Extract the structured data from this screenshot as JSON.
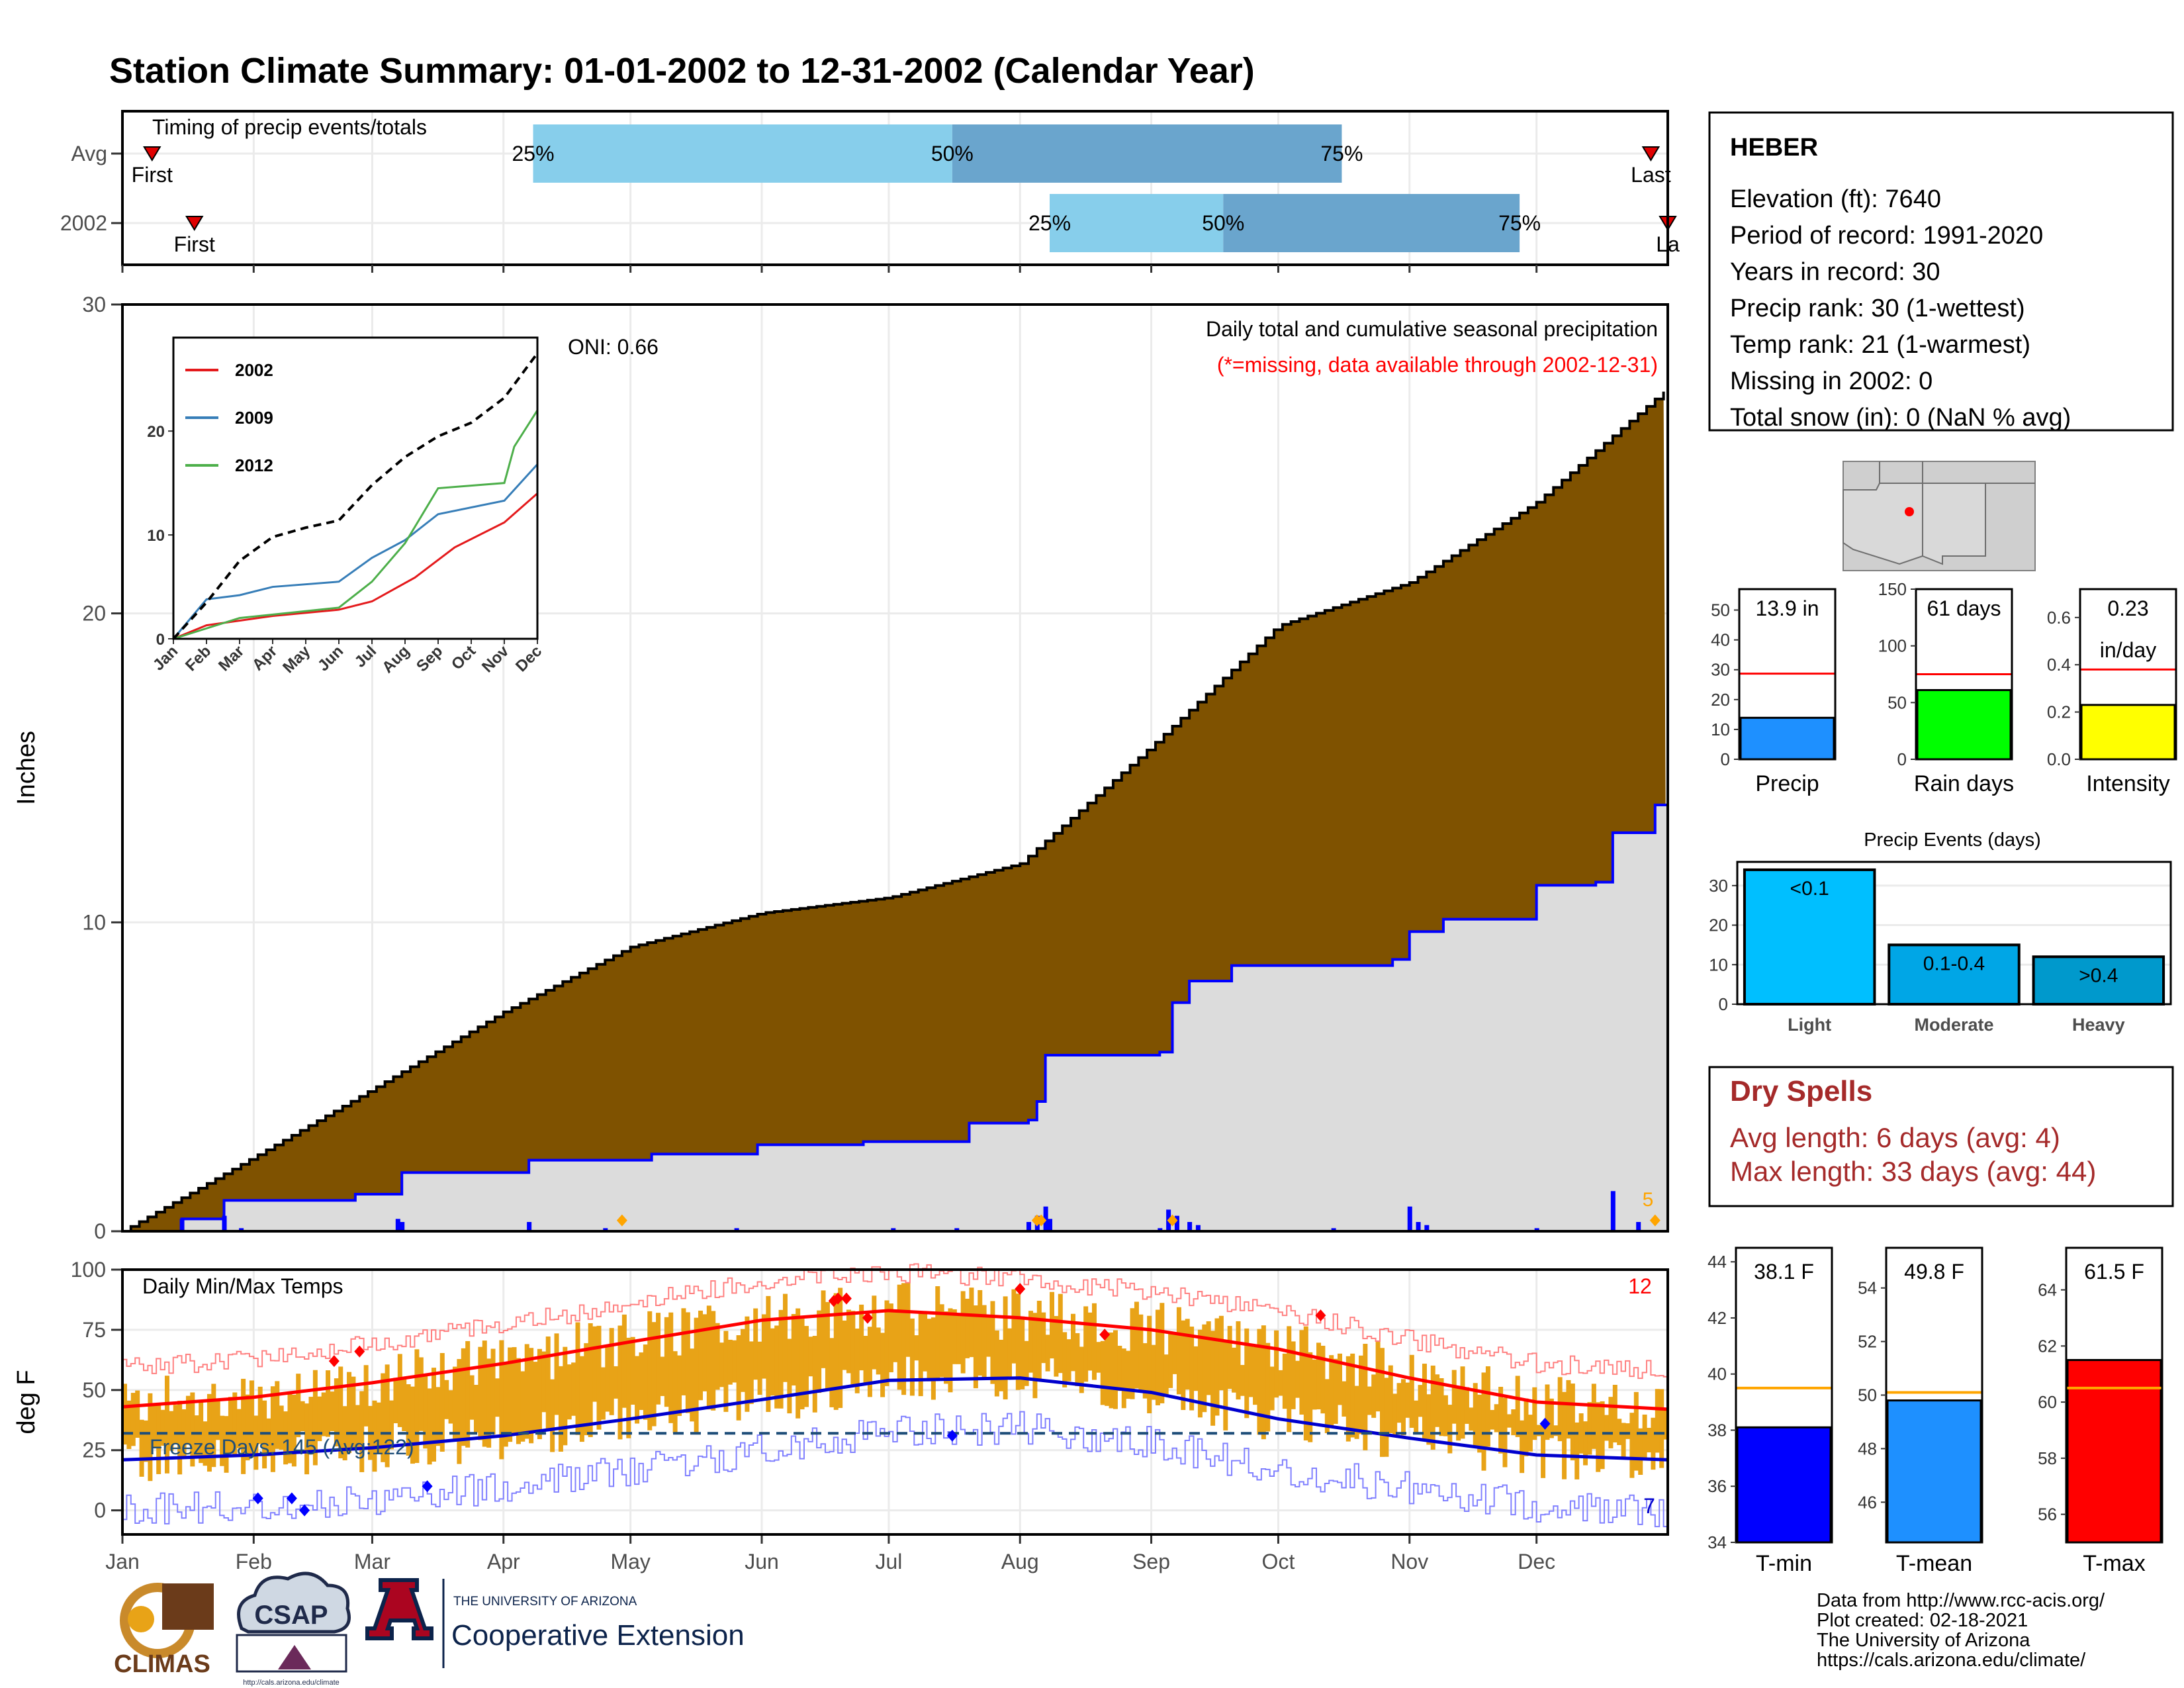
{
  "title": "Station Climate Summary: 01-01-2002 to 12-31-2002 (Calendar Year)",
  "colors": {
    "title": "#000080",
    "precip_fill": "#7f5200",
    "precip_line": "#0000ff",
    "normal_fill": "#dcdcdc",
    "timing_light": "#87ceeb",
    "timing_dark": "#6aa5cd",
    "temp_bar": "#e8a317",
    "dry_spell": "#a52a2a",
    "missing": "#ff0000"
  },
  "months": [
    "Jan",
    "Feb",
    "Mar",
    "Apr",
    "May",
    "Jun",
    "Jul",
    "Aug",
    "Sep",
    "Oct",
    "Nov",
    "Dec"
  ],
  "timing": {
    "label": "Timing of precip events/totals",
    "rows": [
      {
        "name": "Avg",
        "first_day": 7,
        "p25": 97,
        "p50": 196,
        "p75": 288,
        "last_day": 361,
        "first_label": "First",
        "last_label": "Last",
        "p25_label": "25%",
        "p50_label": "50%",
        "p75_label": "75%"
      },
      {
        "name": "2002",
        "first_day": 17,
        "p25": 219,
        "p50": 260,
        "p75": 330,
        "last_day": 365,
        "first_label": "First",
        "last_label": "La",
        "p25_label": "25%",
        "p50_label": "50%",
        "p75_label": "75%"
      }
    ]
  },
  "precip": {
    "ylabel": "Inches",
    "yticks": [
      0,
      10,
      20,
      30
    ],
    "ymax": 30,
    "title": "Daily total and cumulative seasonal precipitation",
    "subtitle": "(*=missing, data available through 2002-12-31)",
    "oni": "ONI: 0.66",
    "corner_count": "5",
    "normal_cumulative": [
      {
        "day": 0,
        "value": 0.0
      },
      {
        "day": 31,
        "value": 2.4
      },
      {
        "day": 59,
        "value": 4.6
      },
      {
        "day": 90,
        "value": 7.1
      },
      {
        "day": 120,
        "value": 9.2
      },
      {
        "day": 151,
        "value": 10.3
      },
      {
        "day": 181,
        "value": 10.8
      },
      {
        "day": 212,
        "value": 11.9
      },
      {
        "day": 243,
        "value": 15.7
      },
      {
        "day": 273,
        "value": 19.6
      },
      {
        "day": 304,
        "value": 21.0
      },
      {
        "day": 334,
        "value": 23.6
      },
      {
        "day": 365,
        "value": 27.3
      }
    ],
    "cumulative_2002": [
      {
        "day": 0,
        "value": 0.0
      },
      {
        "day": 14,
        "value": 0.4
      },
      {
        "day": 24,
        "value": 1.0
      },
      {
        "day": 55,
        "value": 1.2
      },
      {
        "day": 66,
        "value": 1.9
      },
      {
        "day": 96,
        "value": 2.3
      },
      {
        "day": 110,
        "value": 2.3
      },
      {
        "day": 125,
        "value": 2.5
      },
      {
        "day": 150,
        "value": 2.8
      },
      {
        "day": 175,
        "value": 2.9
      },
      {
        "day": 200,
        "value": 3.5
      },
      {
        "day": 214,
        "value": 3.6
      },
      {
        "day": 216,
        "value": 4.2
      },
      {
        "day": 218,
        "value": 5.7
      },
      {
        "day": 245,
        "value": 5.8
      },
      {
        "day": 248,
        "value": 7.4
      },
      {
        "day": 252,
        "value": 8.1
      },
      {
        "day": 262,
        "value": 8.6
      },
      {
        "day": 300,
        "value": 8.8
      },
      {
        "day": 304,
        "value": 9.7
      },
      {
        "day": 312,
        "value": 10.1
      },
      {
        "day": 334,
        "value": 11.2
      },
      {
        "day": 348,
        "value": 11.3
      },
      {
        "day": 352,
        "value": 12.9
      },
      {
        "day": 362,
        "value": 13.8
      },
      {
        "day": 365,
        "value": 13.9
      }
    ],
    "daily": [
      {
        "day": 14,
        "value": 0.4
      },
      {
        "day": 24,
        "value": 0.5
      },
      {
        "day": 28,
        "value": 0.1
      },
      {
        "day": 65,
        "value": 0.4
      },
      {
        "day": 66,
        "value": 0.3
      },
      {
        "day": 96,
        "value": 0.3
      },
      {
        "day": 114,
        "value": 0.1
      },
      {
        "day": 145,
        "value": 0.1
      },
      {
        "day": 182,
        "value": 0.1
      },
      {
        "day": 197,
        "value": 0.1
      },
      {
        "day": 214,
        "value": 0.3
      },
      {
        "day": 216,
        "value": 0.5
      },
      {
        "day": 218,
        "value": 0.8
      },
      {
        "day": 219,
        "value": 0.4
      },
      {
        "day": 245,
        "value": 0.1
      },
      {
        "day": 247,
        "value": 0.7
      },
      {
        "day": 249,
        "value": 0.5
      },
      {
        "day": 252,
        "value": 0.3
      },
      {
        "day": 254,
        "value": 0.2
      },
      {
        "day": 286,
        "value": 0.1
      },
      {
        "day": 304,
        "value": 0.8
      },
      {
        "day": 306,
        "value": 0.3
      },
      {
        "day": 308,
        "value": 0.2
      },
      {
        "day": 334,
        "value": 0.1
      },
      {
        "day": 352,
        "value": 1.3
      },
      {
        "day": 358,
        "value": 0.3
      }
    ]
  },
  "inset": {
    "series": [
      {
        "name": "2002",
        "color": "#e41a1c",
        "points": [
          {
            "m": 0,
            "v": 0
          },
          {
            "m": 1,
            "v": 1.3
          },
          {
            "m": 3,
            "v": 2.2
          },
          {
            "m": 5,
            "v": 2.8
          },
          {
            "m": 6,
            "v": 3.6
          },
          {
            "m": 7.3,
            "v": 5.9
          },
          {
            "m": 8.5,
            "v": 8.8
          },
          {
            "m": 10,
            "v": 11.2
          },
          {
            "m": 11,
            "v": 14
          }
        ]
      },
      {
        "name": "2009",
        "color": "#377eb8",
        "points": [
          {
            "m": 0,
            "v": 0
          },
          {
            "m": 1,
            "v": 3.8
          },
          {
            "m": 2,
            "v": 4.2
          },
          {
            "m": 3,
            "v": 5.0
          },
          {
            "m": 5,
            "v": 5.5
          },
          {
            "m": 6,
            "v": 7.8
          },
          {
            "m": 7,
            "v": 9.5
          },
          {
            "m": 8,
            "v": 12.0
          },
          {
            "m": 10,
            "v": 13.3
          },
          {
            "m": 11,
            "v": 16.8
          }
        ]
      },
      {
        "name": "2012",
        "color": "#4daf4a",
        "points": [
          {
            "m": 0,
            "v": 0
          },
          {
            "m": 2,
            "v": 2.0
          },
          {
            "m": 5,
            "v": 3.0
          },
          {
            "m": 6,
            "v": 5.5
          },
          {
            "m": 7,
            "v": 9.2
          },
          {
            "m": 8,
            "v": 14.5
          },
          {
            "m": 10,
            "v": 15.0
          },
          {
            "m": 10.3,
            "v": 18.5
          },
          {
            "m": 11,
            "v": 22.0
          }
        ]
      },
      {
        "name": "avg",
        "color": "#000000",
        "points": [
          {
            "m": 0,
            "v": 0
          },
          {
            "m": 1,
            "v": 3.5
          },
          {
            "m": 2,
            "v": 7.5
          },
          {
            "m": 3,
            "v": 9.8
          },
          {
            "m": 4,
            "v": 10.7
          },
          {
            "m": 5,
            "v": 11.4
          },
          {
            "m": 6,
            "v": 14.8
          },
          {
            "m": 7,
            "v": 17.5
          },
          {
            "m": 8,
            "v": 19.5
          },
          {
            "m": 9,
            "v": 20.8
          },
          {
            "m": 10,
            "v": 23.2
          },
          {
            "m": 11,
            "v": 27.5
          }
        ]
      }
    ],
    "yticks": [
      0,
      10,
      20
    ],
    "months": [
      "Jan",
      "Feb",
      "Mar",
      "Apr",
      "May",
      "Jun",
      "Jul",
      "Aug",
      "Sep",
      "Oct",
      "Nov",
      "Dec"
    ]
  },
  "temps": {
    "title": "Daily Min/Max Temps",
    "ylabel": "deg F",
    "yticks": [
      0,
      25,
      50,
      75,
      100
    ],
    "ymin": -10,
    "ymax": 100,
    "freeze_label": "Freeze Days: 145 (Avg:122)",
    "freeze_line": 32,
    "count_high": "12",
    "count_low": "7",
    "avg_max": [
      {
        "day": 0,
        "v": 43
      },
      {
        "day": 31,
        "v": 47
      },
      {
        "day": 59,
        "v": 53
      },
      {
        "day": 90,
        "v": 61
      },
      {
        "day": 120,
        "v": 70
      },
      {
        "day": 151,
        "v": 79
      },
      {
        "day": 181,
        "v": 83
      },
      {
        "day": 212,
        "v": 80
      },
      {
        "day": 243,
        "v": 75
      },
      {
        "day": 273,
        "v": 67
      },
      {
        "day": 304,
        "v": 55
      },
      {
        "day": 334,
        "v": 45
      },
      {
        "day": 365,
        "v": 42
      }
    ],
    "avg_min": [
      {
        "day": 0,
        "v": 21
      },
      {
        "day": 31,
        "v": 23
      },
      {
        "day": 59,
        "v": 26
      },
      {
        "day": 90,
        "v": 31
      },
      {
        "day": 120,
        "v": 38
      },
      {
        "day": 151,
        "v": 46
      },
      {
        "day": 181,
        "v": 54
      },
      {
        "day": 212,
        "v": 55
      },
      {
        "day": 243,
        "v": 49
      },
      {
        "day": 273,
        "v": 38
      },
      {
        "day": 304,
        "v": 30
      },
      {
        "day": 334,
        "v": 23
      },
      {
        "day": 365,
        "v": 21
      }
    ]
  },
  "station": {
    "name": "HEBER",
    "lines": [
      "Elevation (ft): 7640",
      "Period of record: 1991-2020",
      "Years in record: 30",
      "Precip rank: 30 (1-wettest)",
      "Temp rank: 21 (1-warmest)",
      "Missing in 2002: 0",
      "Total snow (in): 0 (NaN % avg)"
    ]
  },
  "mini_bars": [
    {
      "label": "Precip",
      "value_label": "13.9 in",
      "value": 13.9,
      "avg": 28.7,
      "ymax": 57,
      "ticks": [
        0,
        10,
        20,
        30,
        40,
        50
      ],
      "color": "#1e90ff"
    },
    {
      "label": "Rain days",
      "value_label": "61 days",
      "value": 61,
      "avg": 75,
      "ymax": 150,
      "ticks": [
        0,
        50,
        100,
        150
      ],
      "color": "#00ff00"
    },
    {
      "label": "Intensity",
      "value_label": "0.23",
      "value_label2": "in/day",
      "value": 0.23,
      "avg": 0.38,
      "ymax": 0.72,
      "ticks": [
        0.0,
        0.2,
        0.4,
        0.6
      ],
      "tick_labels": [
        "0.0",
        "0.2",
        "0.4",
        "0.6"
      ],
      "color": "#ffff00"
    }
  ],
  "events": {
    "title": "Precip Events (days)",
    "ticks": [
      0,
      10,
      20,
      30
    ],
    "ymax": 36,
    "bars": [
      {
        "label": "Light",
        "value_label": "<0.1",
        "value": 34,
        "color": "#00bfff"
      },
      {
        "label": "Moderate",
        "value_label": "0.1-0.4",
        "value": 15,
        "color": "#00a6e6"
      },
      {
        "label": "Heavy",
        "value_label": ">0.4",
        "value": 12,
        "color": "#0099cc"
      }
    ]
  },
  "dry_spells": {
    "title": "Dry Spells",
    "avg_line": "Avg length: 6 days (avg: 4)",
    "max_line": "Max length: 33 days (avg: 44)"
  },
  "temp_bars": [
    {
      "label": "T-min",
      "value_label": "38.1 F",
      "value": 38.1,
      "avg": 39.5,
      "ymin": 34,
      "ymax": 44.5,
      "ticks": [
        34,
        36,
        38,
        40,
        42,
        44
      ],
      "color": "#0000ff"
    },
    {
      "label": "T-mean",
      "value_label": "49.8 F",
      "value": 49.8,
      "avg": 50.1,
      "ymin": 44.5,
      "ymax": 55.5,
      "ticks": [
        46,
        48,
        50,
        52,
        54
      ],
      "color": "#1e90ff"
    },
    {
      "label": "T-max",
      "value_label": "61.5 F",
      "value": 61.5,
      "avg": 60.5,
      "ymin": 55,
      "ymax": 65.5,
      "ticks": [
        56,
        58,
        60,
        62,
        64
      ],
      "color": "#ff0000"
    }
  ],
  "footer": {
    "lines": [
      "Data from http://www.rcc-acis.org/",
      "Plot created: 02-18-2021",
      "The University of Arizona",
      "https://cals.arizona.edu/climate/"
    ]
  },
  "logos": {
    "climas": "CLIMAS",
    "csap": "CSAP",
    "csap_url": "http://cals.arizona.edu/climate",
    "ua_small": "THE UNIVERSITY OF ARIZONA",
    "ua_big": "Cooperative Extension"
  }
}
